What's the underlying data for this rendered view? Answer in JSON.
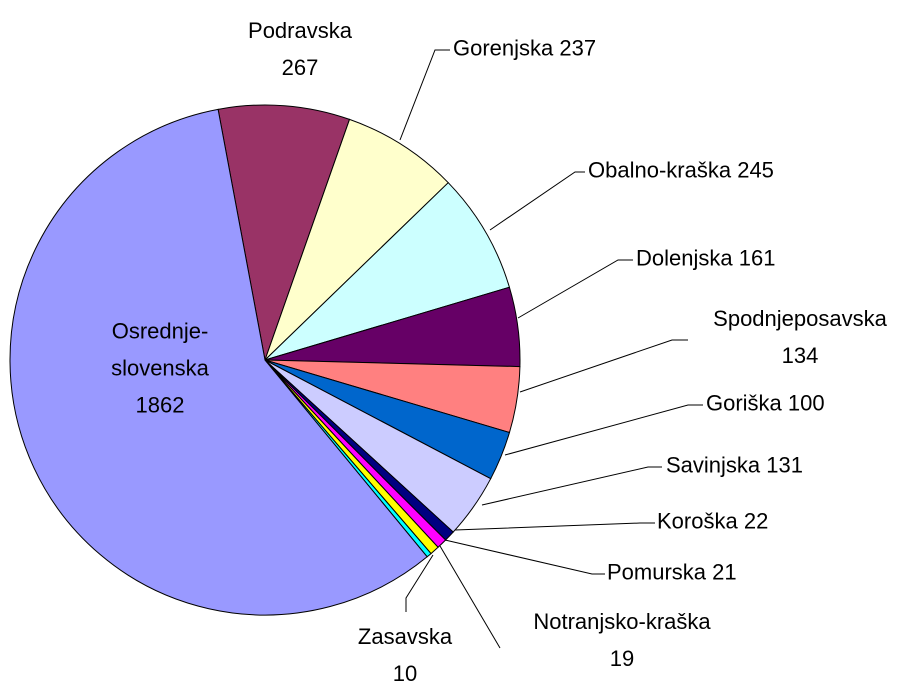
{
  "chart_data": {
    "type": "pie",
    "categories": [
      "Podravska",
      "Gorenjska",
      "Obalno-kraška",
      "Dolenjska",
      "Spodnjeposavska",
      "Goriška",
      "Savinjska",
      "Koroška",
      "Pomurska",
      "Notranjsko-kraška",
      "Zasavska",
      "Osrednje-slovenska"
    ],
    "values": [
      267,
      237,
      245,
      161,
      134,
      100,
      131,
      22,
      21,
      19,
      10,
      1862
    ],
    "colors": [
      "#993366",
      "#FFFFCC",
      "#CCFFFF",
      "#660066",
      "#FF8080",
      "#0066CC",
      "#CCCCFF",
      "#000080",
      "#FF00FF",
      "#FFFF00",
      "#00FFFF",
      "#9999FF"
    ]
  }
}
